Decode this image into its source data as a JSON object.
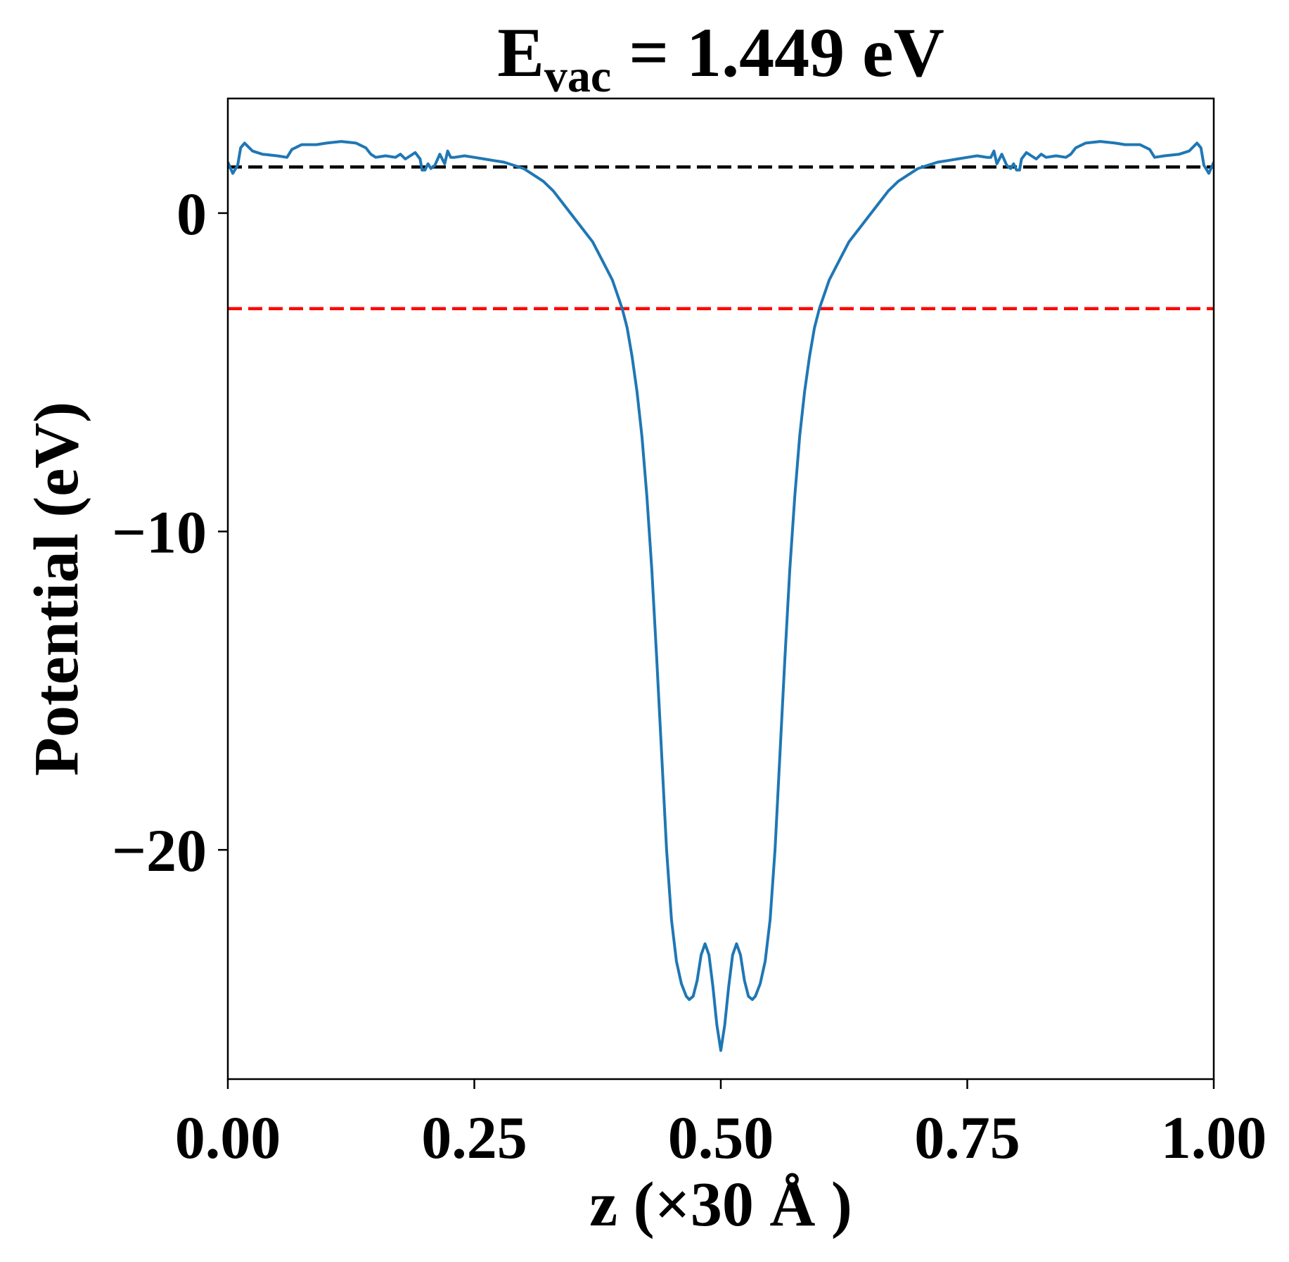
{
  "chart_data": {
    "type": "line",
    "title": {
      "main": "E",
      "subscript": "vac",
      "suffix": " = 1.449 eV"
    },
    "xlabel": "z (×30 Å )",
    "ylabel": "Potential (eV)",
    "xlim": [
      0,
      1
    ],
    "ylim": [
      -27.2,
      3.6
    ],
    "xticks": [
      0,
      0.25,
      0.5,
      0.75,
      1
    ],
    "xtick_labels": [
      "0.00",
      "0.25",
      "0.50",
      "0.75",
      "1.00"
    ],
    "yticks": [
      0,
      -10,
      -20
    ],
    "ytick_labels": [
      "0",
      "−10",
      "−20"
    ],
    "grid": false,
    "reference_lines": [
      {
        "y": 1.449,
        "color": "#000000",
        "style": "dashed"
      },
      {
        "y": -3.0,
        "color": "#ff0000",
        "style": "dashed"
      }
    ],
    "series": [
      {
        "color": "#1f77b4",
        "points": [
          [
            0.0,
            1.6
          ],
          [
            0.005,
            1.25
          ],
          [
            0.01,
            1.5
          ],
          [
            0.013,
            2.05
          ],
          [
            0.017,
            2.2
          ],
          [
            0.025,
            1.95
          ],
          [
            0.035,
            1.85
          ],
          [
            0.05,
            1.8
          ],
          [
            0.06,
            1.75
          ],
          [
            0.065,
            2.0
          ],
          [
            0.075,
            2.15
          ],
          [
            0.09,
            2.15
          ],
          [
            0.1,
            2.2
          ],
          [
            0.115,
            2.25
          ],
          [
            0.13,
            2.2
          ],
          [
            0.14,
            2.05
          ],
          [
            0.145,
            1.85
          ],
          [
            0.15,
            1.75
          ],
          [
            0.16,
            1.8
          ],
          [
            0.17,
            1.75
          ],
          [
            0.175,
            1.85
          ],
          [
            0.18,
            1.7
          ],
          [
            0.185,
            1.8
          ],
          [
            0.19,
            1.9
          ],
          [
            0.195,
            1.7
          ],
          [
            0.197,
            1.35
          ],
          [
            0.2,
            1.35
          ],
          [
            0.203,
            1.55
          ],
          [
            0.206,
            1.4
          ],
          [
            0.21,
            1.5
          ],
          [
            0.215,
            1.85
          ],
          [
            0.22,
            1.55
          ],
          [
            0.223,
            1.95
          ],
          [
            0.226,
            1.75
          ],
          [
            0.23,
            1.75
          ],
          [
            0.24,
            1.8
          ],
          [
            0.25,
            1.75
          ],
          [
            0.26,
            1.7
          ],
          [
            0.27,
            1.65
          ],
          [
            0.28,
            1.6
          ],
          [
            0.29,
            1.5
          ],
          [
            0.3,
            1.4
          ],
          [
            0.31,
            1.2
          ],
          [
            0.32,
            1.0
          ],
          [
            0.33,
            0.7
          ],
          [
            0.34,
            0.3
          ],
          [
            0.35,
            -0.1
          ],
          [
            0.36,
            -0.5
          ],
          [
            0.37,
            -0.9
          ],
          [
            0.38,
            -1.5
          ],
          [
            0.39,
            -2.1
          ],
          [
            0.4,
            -3.0
          ],
          [
            0.405,
            -3.6
          ],
          [
            0.41,
            -4.5
          ],
          [
            0.415,
            -5.6
          ],
          [
            0.42,
            -7.0
          ],
          [
            0.425,
            -8.9
          ],
          [
            0.43,
            -11.2
          ],
          [
            0.435,
            -14.0
          ],
          [
            0.44,
            -17.0
          ],
          [
            0.445,
            -20.0
          ],
          [
            0.45,
            -22.2
          ],
          [
            0.455,
            -23.5
          ],
          [
            0.46,
            -24.2
          ],
          [
            0.465,
            -24.6
          ],
          [
            0.468,
            -24.7
          ],
          [
            0.472,
            -24.6
          ],
          [
            0.476,
            -24.1
          ],
          [
            0.48,
            -23.3
          ],
          [
            0.484,
            -22.95
          ],
          [
            0.488,
            -23.3
          ],
          [
            0.492,
            -24.3
          ],
          [
            0.496,
            -25.5
          ],
          [
            0.5,
            -26.3
          ],
          [
            0.504,
            -25.5
          ],
          [
            0.508,
            -24.3
          ],
          [
            0.512,
            -23.3
          ],
          [
            0.516,
            -22.95
          ],
          [
            0.52,
            -23.3
          ],
          [
            0.524,
            -24.1
          ],
          [
            0.528,
            -24.6
          ],
          [
            0.532,
            -24.7
          ],
          [
            0.535,
            -24.6
          ],
          [
            0.54,
            -24.2
          ],
          [
            0.545,
            -23.5
          ],
          [
            0.55,
            -22.2
          ],
          [
            0.555,
            -20.0
          ],
          [
            0.56,
            -17.0
          ],
          [
            0.565,
            -14.0
          ],
          [
            0.57,
            -11.2
          ],
          [
            0.575,
            -8.9
          ],
          [
            0.58,
            -7.0
          ],
          [
            0.585,
            -5.6
          ],
          [
            0.59,
            -4.5
          ],
          [
            0.595,
            -3.6
          ],
          [
            0.6,
            -3.0
          ],
          [
            0.61,
            -2.1
          ],
          [
            0.62,
            -1.5
          ],
          [
            0.63,
            -0.9
          ],
          [
            0.64,
            -0.5
          ],
          [
            0.65,
            -0.1
          ],
          [
            0.66,
            0.3
          ],
          [
            0.67,
            0.7
          ],
          [
            0.68,
            1.0
          ],
          [
            0.69,
            1.2
          ],
          [
            0.7,
            1.4
          ],
          [
            0.71,
            1.5
          ],
          [
            0.72,
            1.6
          ],
          [
            0.73,
            1.65
          ],
          [
            0.74,
            1.7
          ],
          [
            0.75,
            1.75
          ],
          [
            0.76,
            1.8
          ],
          [
            0.77,
            1.75
          ],
          [
            0.774,
            1.75
          ],
          [
            0.777,
            1.95
          ],
          [
            0.78,
            1.55
          ],
          [
            0.785,
            1.85
          ],
          [
            0.79,
            1.5
          ],
          [
            0.794,
            1.4
          ],
          [
            0.797,
            1.55
          ],
          [
            0.8,
            1.35
          ],
          [
            0.803,
            1.35
          ],
          [
            0.805,
            1.7
          ],
          [
            0.81,
            1.9
          ],
          [
            0.815,
            1.8
          ],
          [
            0.82,
            1.7
          ],
          [
            0.825,
            1.85
          ],
          [
            0.83,
            1.75
          ],
          [
            0.84,
            1.8
          ],
          [
            0.85,
            1.75
          ],
          [
            0.855,
            1.85
          ],
          [
            0.86,
            2.05
          ],
          [
            0.87,
            2.2
          ],
          [
            0.885,
            2.25
          ],
          [
            0.9,
            2.2
          ],
          [
            0.91,
            2.15
          ],
          [
            0.925,
            2.15
          ],
          [
            0.935,
            2.0
          ],
          [
            0.94,
            1.75
          ],
          [
            0.95,
            1.8
          ],
          [
            0.965,
            1.85
          ],
          [
            0.975,
            1.95
          ],
          [
            0.983,
            2.2
          ],
          [
            0.987,
            2.05
          ],
          [
            0.99,
            1.5
          ],
          [
            0.995,
            1.25
          ],
          [
            1.0,
            1.6
          ]
        ]
      }
    ]
  }
}
